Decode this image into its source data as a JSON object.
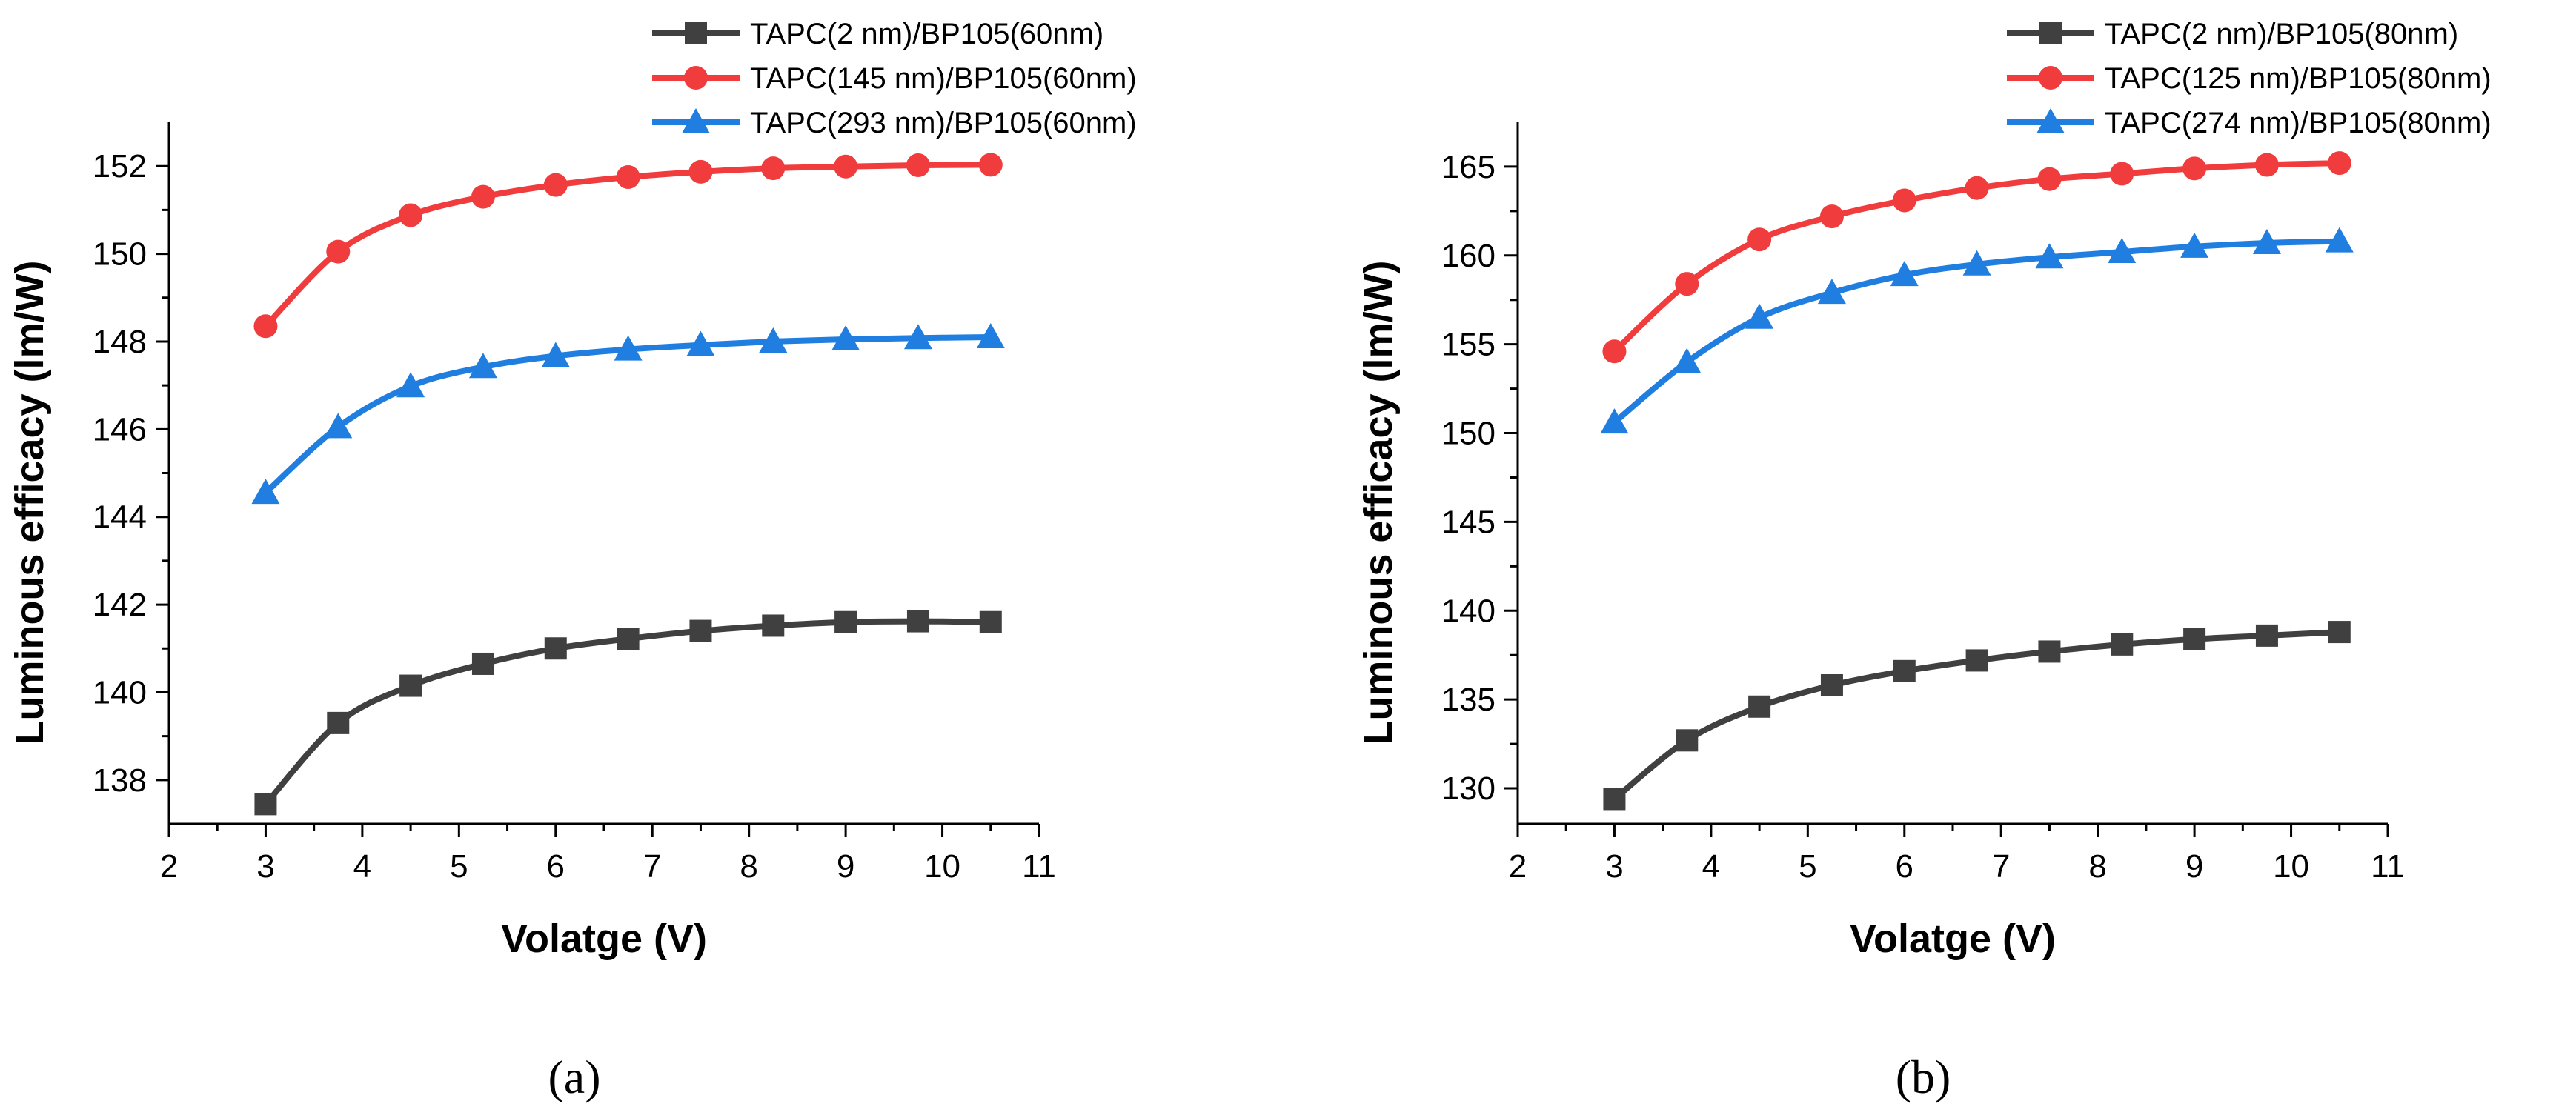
{
  "chart_data": [
    {
      "type": "line",
      "panel_label": "(a)",
      "xlabel": "Volatge (V)",
      "ylabel": "Luminous efficacy (lm/W)",
      "xlim": [
        2,
        11
      ],
      "ylim": [
        137,
        153
      ],
      "xticks": [
        2,
        3,
        4,
        5,
        6,
        7,
        8,
        9,
        10,
        11
      ],
      "yticks": [
        138,
        140,
        142,
        144,
        146,
        148,
        150,
        152
      ],
      "legend_position": "top-right",
      "x": [
        3,
        3.75,
        4.5,
        5.25,
        6,
        6.75,
        7.5,
        8.25,
        9,
        9.75,
        10.5
      ],
      "series": [
        {
          "name": "TAPC(2 nm)/BP105(60nm)",
          "color": "#404040",
          "marker": "square",
          "values": [
            137.45,
            139.3,
            140.15,
            140.65,
            141.0,
            141.22,
            141.4,
            141.52,
            141.6,
            141.62,
            141.6
          ]
        },
        {
          "name": "TAPC(145 nm)/BP105(60nm)",
          "color": "#f03c3c",
          "marker": "circle",
          "values": [
            148.35,
            150.05,
            150.88,
            151.3,
            151.57,
            151.75,
            151.87,
            151.95,
            151.99,
            152.02,
            152.03
          ]
        },
        {
          "name": "TAPC(293 nm)/BP105(60nm)",
          "color": "#1f7ee0",
          "marker": "triangle",
          "values": [
            144.55,
            146.05,
            146.98,
            147.42,
            147.67,
            147.82,
            147.92,
            148.0,
            148.05,
            148.08,
            148.1
          ]
        }
      ]
    },
    {
      "type": "line",
      "panel_label": "(b)",
      "xlabel": "Volatge (V)",
      "ylabel": "Luminous efficacy (lm/W)",
      "xlim": [
        2,
        11
      ],
      "ylim": [
        128,
        167.5
      ],
      "xticks": [
        2,
        3,
        4,
        5,
        6,
        7,
        8,
        9,
        10,
        11
      ],
      "yticks": [
        130,
        135,
        140,
        145,
        150,
        155,
        160,
        165
      ],
      "legend_position": "top-right",
      "x": [
        3,
        3.75,
        4.5,
        5.25,
        6,
        6.75,
        7.5,
        8.25,
        9,
        9.75,
        10.5
      ],
      "series": [
        {
          "name": "TAPC(2 nm)/BP105(80nm)",
          "color": "#404040",
          "marker": "square",
          "values": [
            129.4,
            132.7,
            134.6,
            135.8,
            136.6,
            137.2,
            137.7,
            138.1,
            138.4,
            138.6,
            138.8
          ]
        },
        {
          "name": "TAPC(125 nm)/BP105(80nm)",
          "color": "#f03c3c",
          "marker": "circle",
          "values": [
            154.6,
            158.4,
            160.9,
            162.2,
            163.1,
            163.8,
            164.3,
            164.6,
            164.9,
            165.1,
            165.2
          ]
        },
        {
          "name": "TAPC(274 nm)/BP105(80nm)",
          "color": "#1f7ee0",
          "marker": "triangle",
          "values": [
            150.6,
            154.0,
            156.5,
            157.9,
            158.9,
            159.5,
            159.9,
            160.2,
            160.5,
            160.7,
            160.8
          ]
        }
      ]
    }
  ]
}
